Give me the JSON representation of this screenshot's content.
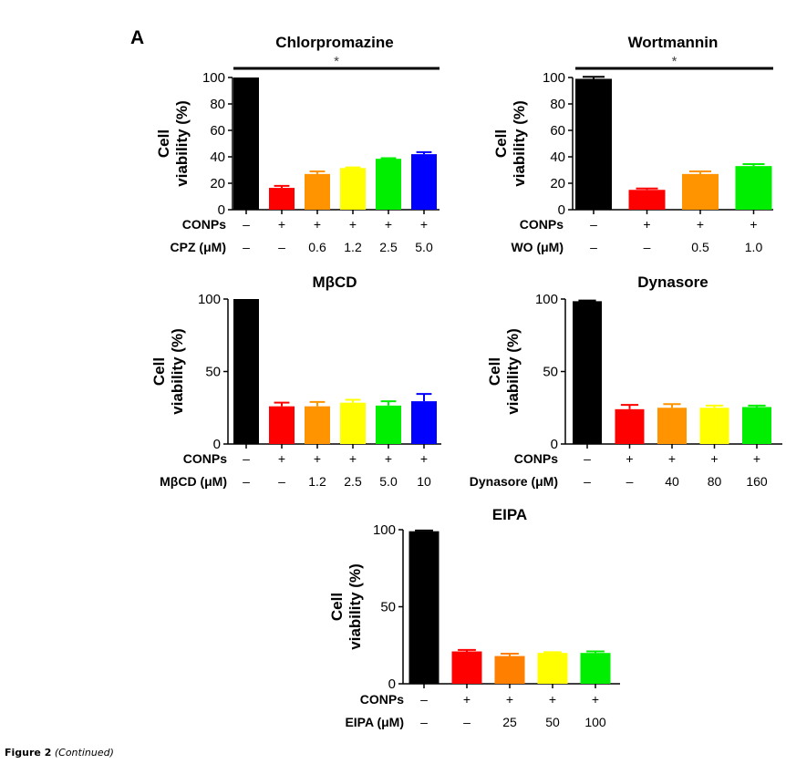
{
  "panel_letter": "A",
  "caption": {
    "label": "Figure 2",
    "note": "(Continued)"
  },
  "chart_data": [
    {
      "type": "bar",
      "title": "Chlorpromazine",
      "ylabel_line1": "Cell",
      "ylabel_line2": "viability (%)",
      "ylim": [
        0,
        100
      ],
      "yticks": [
        0,
        20,
        40,
        60,
        80,
        100
      ],
      "grid": false,
      "significance": {
        "label": "*",
        "from_bar": 0,
        "to_bar": 5
      },
      "rows": [
        {
          "label": "CONPs",
          "values": [
            "–",
            "+",
            "+",
            "+",
            "+",
            "+"
          ]
        },
        {
          "label": "CPZ (μM)",
          "values": [
            "–",
            "–",
            "0.6",
            "1.2",
            "2.5",
            "5.0"
          ]
        }
      ],
      "values": [
        100,
        16.5,
        27,
        31.5,
        38.5,
        42
      ],
      "errors": [
        0,
        1.5,
        2,
        0.5,
        0.5,
        1.5
      ],
      "colors": [
        "#000000",
        "#ff0000",
        "#ff9400",
        "#ffff00",
        "#00ee00",
        "#0000ff"
      ]
    },
    {
      "type": "bar",
      "title": "Wortmannin",
      "ylabel_line1": "Cell",
      "ylabel_line2": "viability (%)",
      "ylim": [
        0,
        100
      ],
      "yticks": [
        0,
        20,
        40,
        60,
        80,
        100
      ],
      "grid": false,
      "significance": {
        "label": "*",
        "from_bar": 0,
        "to_bar": 3
      },
      "rows": [
        {
          "label": "CONPs",
          "values": [
            "–",
            "+",
            "+",
            "+"
          ]
        },
        {
          "label": "WO (μM)",
          "values": [
            "–",
            "–",
            "0.5",
            "1.0"
          ]
        }
      ],
      "values": [
        99,
        15,
        27,
        33
      ],
      "errors": [
        1.5,
        1,
        2,
        1.5
      ],
      "colors": [
        "#000000",
        "#ff0000",
        "#ff9400",
        "#00ee00"
      ]
    },
    {
      "type": "bar",
      "title": "MβCD",
      "ylabel_line1": "Cell",
      "ylabel_line2": "viability (%)",
      "ylim": [
        0,
        100
      ],
      "yticks": [
        0,
        50,
        100
      ],
      "grid": false,
      "significance": null,
      "rows": [
        {
          "label": "CONPs",
          "values": [
            "–",
            "+",
            "+",
            "+",
            "+",
            "+"
          ]
        },
        {
          "label": "MβCD (μM)",
          "values": [
            "–",
            "–",
            "1.2",
            "2.5",
            "5.0",
            "10"
          ]
        }
      ],
      "values": [
        100,
        26,
        26,
        28.5,
        26.5,
        29.5
      ],
      "errors": [
        0,
        2.5,
        3,
        2,
        3,
        5
      ],
      "colors": [
        "#000000",
        "#ff0000",
        "#ff9400",
        "#ffff00",
        "#00ee00",
        "#0000ff"
      ]
    },
    {
      "type": "bar",
      "title": "Dynasore",
      "ylabel_line1": "Cell",
      "ylabel_line2": "viability (%)",
      "ylim": [
        0,
        100
      ],
      "yticks": [
        0,
        50,
        100
      ],
      "grid": false,
      "significance": null,
      "rows": [
        {
          "label": "CONPs",
          "values": [
            "–",
            "+",
            "+",
            "+",
            "+"
          ]
        },
        {
          "label": "Dynasore (μM)",
          "values": [
            "–",
            "–",
            "40",
            "80",
            "160"
          ]
        }
      ],
      "values": [
        98.5,
        24,
        25,
        25,
        25.5
      ],
      "errors": [
        0.5,
        3,
        2.5,
        1.5,
        1
      ],
      "colors": [
        "#000000",
        "#ff0000",
        "#ff9400",
        "#ffff00",
        "#00ee00"
      ]
    },
    {
      "type": "bar",
      "title": "EIPA",
      "ylabel_line1": "Cell",
      "ylabel_line2": "viability (%)",
      "ylim": [
        0,
        100
      ],
      "yticks": [
        0,
        50,
        100
      ],
      "grid": false,
      "significance": null,
      "rows": [
        {
          "label": "CONPs",
          "values": [
            "–",
            "+",
            "+",
            "+",
            "+"
          ]
        },
        {
          "label": "EIPA (μM)",
          "values": [
            "–",
            "–",
            "25",
            "50",
            "100"
          ]
        }
      ],
      "values": [
        99,
        21,
        18,
        20,
        20
      ],
      "errors": [
        0.5,
        1,
        1.5,
        0.5,
        1
      ],
      "colors": [
        "#000000",
        "#ff0000",
        "#ff7f00",
        "#ffff00",
        "#00ee00"
      ]
    }
  ]
}
